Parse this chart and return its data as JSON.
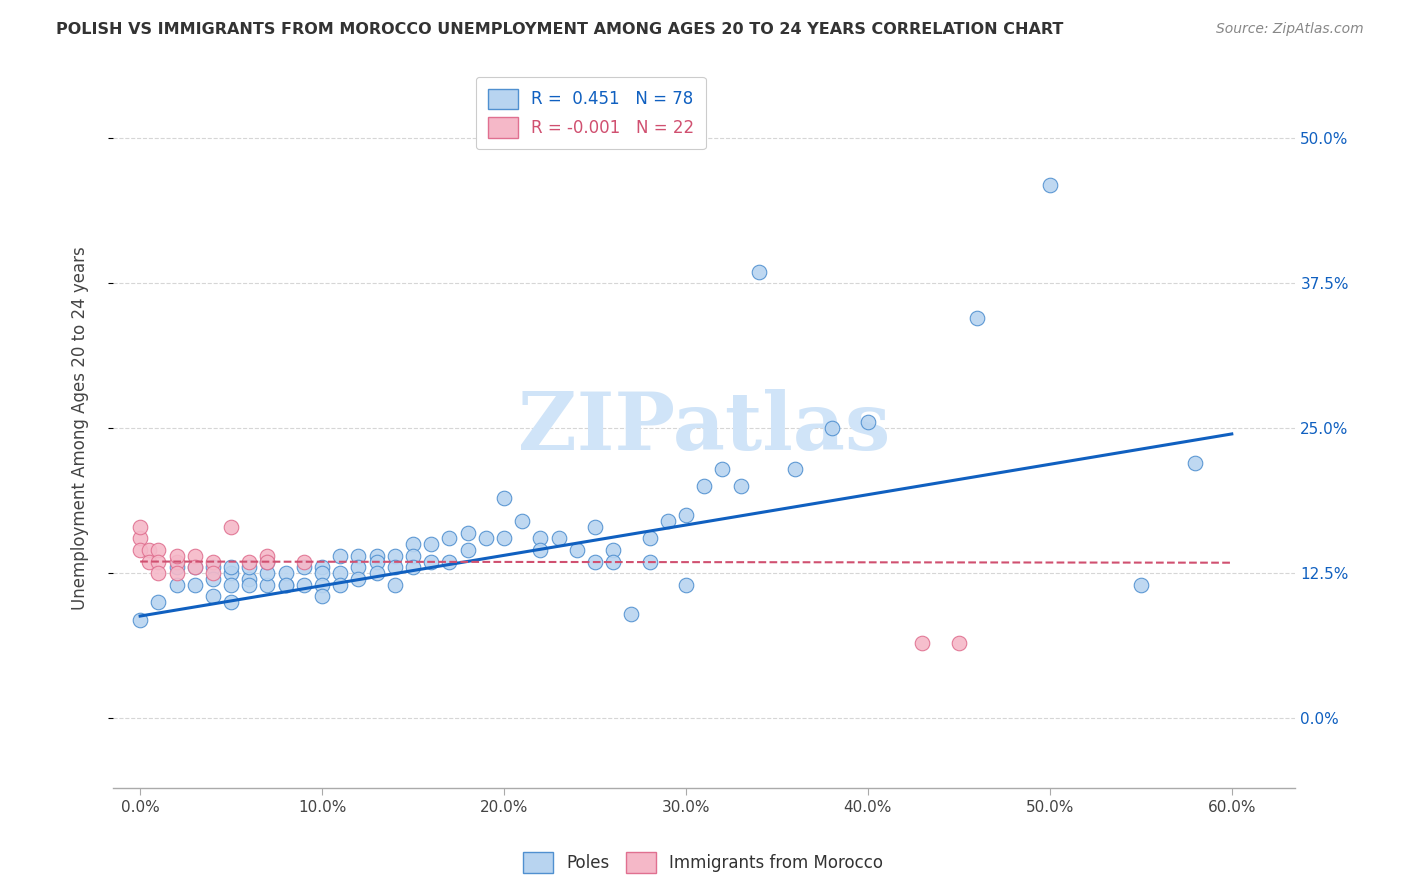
{
  "title": "POLISH VS IMMIGRANTS FROM MOROCCO UNEMPLOYMENT AMONG AGES 20 TO 24 YEARS CORRELATION CHART",
  "source": "Source: ZipAtlas.com",
  "xlabel_vals": [
    0.0,
    0.1,
    0.2,
    0.3,
    0.4,
    0.5,
    0.6
  ],
  "ylabel": "Unemployment Among Ages 20 to 24 years",
  "ylabel_vals": [
    0.0,
    0.125,
    0.25,
    0.375,
    0.5
  ],
  "ylabel_labels": [
    "0.0%",
    "12.5%",
    "25.0%",
    "37.5%",
    "50.0%"
  ],
  "ylim": [
    -0.06,
    0.56
  ],
  "xlim": [
    -0.015,
    0.635
  ],
  "poles_R": 0.451,
  "poles_N": 78,
  "morocco_R": -0.001,
  "morocco_N": 22,
  "poles_color": "#b8d4f0",
  "poles_edge_color": "#5090d0",
  "poles_line_color": "#1060c0",
  "morocco_color": "#f5b8c8",
  "morocco_edge_color": "#e07090",
  "morocco_line_color": "#d05070",
  "right_tick_color": "#1060c0",
  "watermark_color": "#d0e4f8",
  "background_color": "#ffffff",
  "grid_color": "#cccccc",
  "poles_scatter_x": [
    0.0,
    0.01,
    0.02,
    0.02,
    0.03,
    0.03,
    0.04,
    0.04,
    0.04,
    0.05,
    0.05,
    0.05,
    0.05,
    0.06,
    0.06,
    0.06,
    0.07,
    0.07,
    0.07,
    0.08,
    0.08,
    0.08,
    0.09,
    0.09,
    0.1,
    0.1,
    0.1,
    0.1,
    0.11,
    0.11,
    0.11,
    0.12,
    0.12,
    0.12,
    0.13,
    0.13,
    0.13,
    0.14,
    0.14,
    0.14,
    0.15,
    0.15,
    0.15,
    0.16,
    0.16,
    0.17,
    0.17,
    0.18,
    0.18,
    0.19,
    0.2,
    0.2,
    0.21,
    0.22,
    0.22,
    0.23,
    0.24,
    0.25,
    0.25,
    0.26,
    0.26,
    0.27,
    0.28,
    0.28,
    0.29,
    0.3,
    0.3,
    0.31,
    0.32,
    0.33,
    0.34,
    0.36,
    0.38,
    0.4,
    0.46,
    0.5,
    0.55,
    0.58
  ],
  "poles_scatter_y": [
    0.085,
    0.1,
    0.115,
    0.13,
    0.115,
    0.13,
    0.105,
    0.13,
    0.12,
    0.1,
    0.125,
    0.13,
    0.115,
    0.12,
    0.13,
    0.115,
    0.115,
    0.125,
    0.135,
    0.115,
    0.125,
    0.115,
    0.13,
    0.115,
    0.13,
    0.125,
    0.115,
    0.105,
    0.14,
    0.125,
    0.115,
    0.14,
    0.13,
    0.12,
    0.14,
    0.135,
    0.125,
    0.14,
    0.13,
    0.115,
    0.15,
    0.14,
    0.13,
    0.15,
    0.135,
    0.155,
    0.135,
    0.16,
    0.145,
    0.155,
    0.19,
    0.155,
    0.17,
    0.155,
    0.145,
    0.155,
    0.145,
    0.165,
    0.135,
    0.145,
    0.135,
    0.09,
    0.155,
    0.135,
    0.17,
    0.175,
    0.115,
    0.2,
    0.215,
    0.2,
    0.385,
    0.215,
    0.25,
    0.255,
    0.345,
    0.46,
    0.115,
    0.22
  ],
  "morocco_scatter_x": [
    0.0,
    0.0,
    0.0,
    0.005,
    0.005,
    0.01,
    0.01,
    0.01,
    0.02,
    0.02,
    0.02,
    0.03,
    0.03,
    0.04,
    0.04,
    0.05,
    0.06,
    0.07,
    0.07,
    0.09,
    0.43,
    0.45
  ],
  "morocco_scatter_y": [
    0.155,
    0.165,
    0.145,
    0.145,
    0.135,
    0.145,
    0.135,
    0.125,
    0.135,
    0.14,
    0.125,
    0.14,
    0.13,
    0.135,
    0.125,
    0.165,
    0.135,
    0.14,
    0.135,
    0.135,
    0.065,
    0.065
  ],
  "poles_line_x0": 0.0,
  "poles_line_y0": 0.088,
  "poles_line_x1": 0.6,
  "poles_line_y1": 0.245,
  "morocco_line_x0": 0.0,
  "morocco_line_y0": 0.135,
  "morocco_line_x1": 0.6,
  "morocco_line_y1": 0.134
}
